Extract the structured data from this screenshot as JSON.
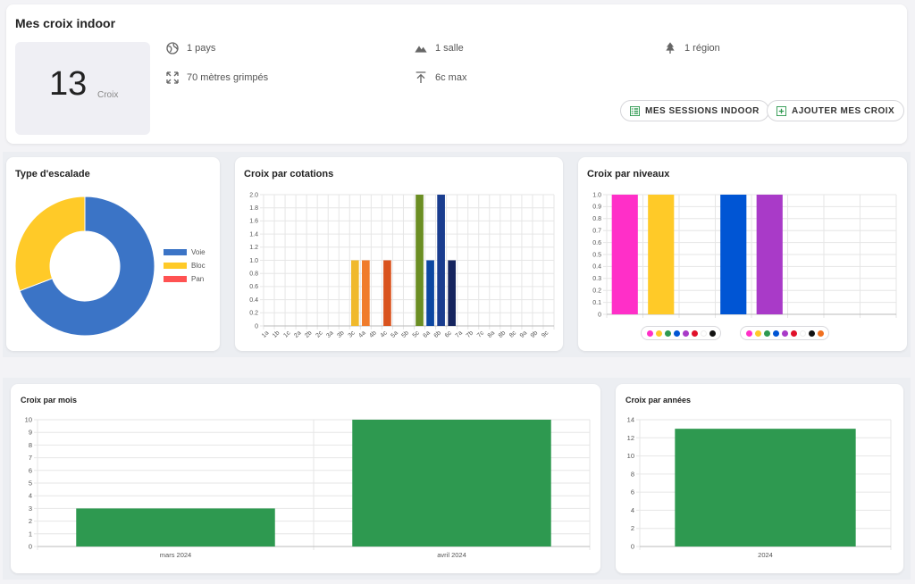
{
  "summary": {
    "title": "Mes croix indoor",
    "count": "13",
    "count_label": "Croix",
    "stats": [
      {
        "icon": "globe-icon",
        "text": "1 pays"
      },
      {
        "icon": "mountain-icon",
        "text": "1 salle"
      },
      {
        "icon": "tree-icon",
        "text": "1 région"
      },
      {
        "icon": "expand-icon",
        "text": "70 mètres grimpés"
      },
      {
        "icon": "arrow-up-bar-icon",
        "text": "6c max"
      }
    ],
    "buttons": {
      "sessions": "MES SESSIONS INDOOR",
      "add": "AJOUTER MES CROIX"
    }
  },
  "colors": {
    "voie": "#3b74c6",
    "bloc": "#ffca28",
    "pan": "#ff5252",
    "green_bar": "#2e9950",
    "button_icon": "#2e9950"
  },
  "chart_data": [
    {
      "id": "type",
      "type": "pie",
      "title": "Type d'escalade",
      "categories": [
        "Voie",
        "Bloc",
        "Pan"
      ],
      "values": [
        9,
        4,
        0
      ],
      "colors": [
        "#3b74c6",
        "#ffca28",
        "#ff5252"
      ],
      "legend": "right"
    },
    {
      "id": "cotations",
      "type": "bar",
      "title": "Croix par cotations",
      "categories": [
        "1a",
        "1b",
        "1c",
        "2a",
        "2b",
        "2c",
        "3a",
        "3b",
        "3c",
        "4a",
        "4b",
        "4c",
        "5a",
        "5b",
        "5c",
        "6a",
        "6b",
        "6c",
        "7a",
        "7b",
        "7c",
        "8a",
        "8b",
        "8c",
        "9a",
        "9b",
        "9c"
      ],
      "values": [
        0,
        0,
        0,
        0,
        0,
        0,
        0,
        0,
        1,
        1,
        0,
        1,
        0,
        0,
        2,
        1,
        2,
        1,
        0,
        0,
        0,
        0,
        0,
        0,
        0,
        0,
        0
      ],
      "colors": [
        "#ccc",
        "#ccc",
        "#ccc",
        "#ccc",
        "#ccc",
        "#ccc",
        "#ccc",
        "#ccc",
        "#f0b92c",
        "#f07c2c",
        "#ccc",
        "#d9531e",
        "#ccc",
        "#ccc",
        "#6b8e23",
        "#0d47a1",
        "#1a3d8f",
        "#15245e",
        "#ccc",
        "#ccc",
        "#ccc",
        "#ccc",
        "#ccc",
        "#ccc",
        "#ccc",
        "#ccc",
        "#ccc"
      ],
      "ylim": [
        0,
        2
      ],
      "yticks": [
        "0",
        "0.2",
        "0.4",
        "0.6",
        "0.8",
        "1.0",
        "1.2",
        "1.4",
        "1.6",
        "1.8",
        "2.0"
      ],
      "grid": true
    },
    {
      "id": "niveaux",
      "type": "bar",
      "title": "Croix par niveaux",
      "categories": [
        "",
        "",
        "",
        "",
        "",
        "",
        "",
        ""
      ],
      "values": [
        1,
        1,
        0,
        1,
        1,
        0,
        0,
        0
      ],
      "colors": [
        "#ff2fc8",
        "#ffca28",
        "#cccccc",
        "#0055d4",
        "#a93ac8",
        "#cccccc",
        "#cccccc",
        "#cccccc"
      ],
      "ylim": [
        0,
        1
      ],
      "yticks": [
        "0",
        "0.1",
        "0.2",
        "0.3",
        "0.4",
        "0.5",
        "0.6",
        "0.7",
        "0.8",
        "0.9",
        "1.0"
      ],
      "legend_dots": [
        [
          "#ff2fc8",
          "#ffca28",
          "#2e9950",
          "#0055d4",
          "#a93ac8",
          "#e0102a",
          "#ffffff",
          "#111111"
        ],
        [
          "#ff2fc8",
          "#ffca28",
          "#2e9950",
          "#0055d4",
          "#a93ac8",
          "#e0102a",
          "#ffffff",
          "#111111",
          "#f07020"
        ]
      ],
      "grid": true
    },
    {
      "id": "mois",
      "type": "bar",
      "title": "Croix par mois",
      "categories": [
        "mars 2024",
        "avril 2024"
      ],
      "values": [
        3,
        10
      ],
      "ylim": [
        0,
        10
      ],
      "yticks": [
        "0",
        "1",
        "2",
        "3",
        "4",
        "5",
        "6",
        "7",
        "8",
        "9",
        "10"
      ],
      "color": "#2e9950",
      "grid": true
    },
    {
      "id": "annees",
      "type": "bar",
      "title": "Croix par années",
      "categories": [
        "2024"
      ],
      "values": [
        13
      ],
      "ylim": [
        0,
        14
      ],
      "yticks": [
        "0",
        "2",
        "4",
        "6",
        "8",
        "10",
        "12",
        "14"
      ],
      "color": "#2e9950",
      "grid": true
    }
  ]
}
